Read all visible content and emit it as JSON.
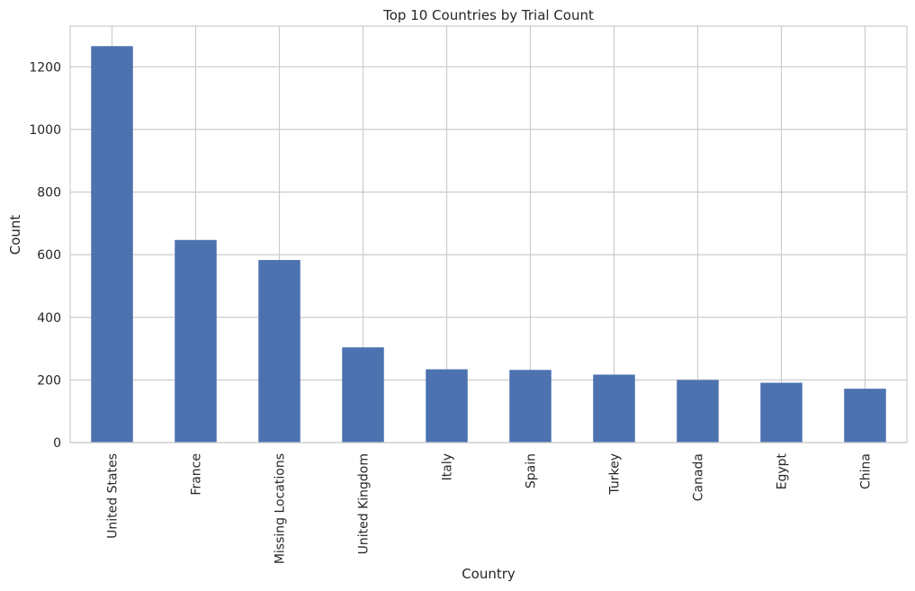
{
  "chart_data": {
    "type": "bar",
    "title": "Top 10 Countries by Trial Count",
    "xlabel": "Country",
    "ylabel": "Count",
    "categories": [
      "United States",
      "France",
      "Missing Locations",
      "United Kingdom",
      "Italy",
      "Spain",
      "Turkey",
      "Canada",
      "Egypt",
      "China"
    ],
    "values": [
      1266,
      647,
      583,
      304,
      234,
      232,
      217,
      200,
      191,
      172
    ],
    "yticks": [
      0,
      200,
      400,
      600,
      800,
      1000,
      1200
    ],
    "ylim": [
      0,
      1330
    ],
    "grid": true,
    "bar_color": "#4c72b0"
  }
}
